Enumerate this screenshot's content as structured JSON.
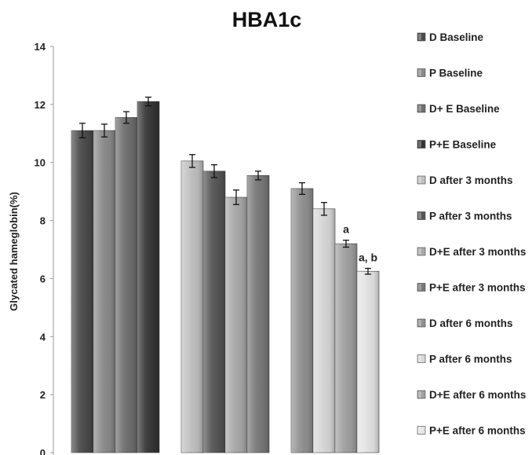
{
  "chart_data": {
    "type": "bar",
    "title": "HBA1c",
    "ylabel": "Glycated hameglobin(%)",
    "xlabel": "",
    "ylim": [
      0,
      14
    ],
    "yticks": [
      0,
      2,
      4,
      6,
      8,
      10,
      12,
      14
    ],
    "grid": false,
    "legend_position": "right",
    "groups": [
      {
        "bars": [
          {
            "series": "D Baseline",
            "value": 11.1,
            "error": 0.25,
            "color": "#4a4a4a"
          },
          {
            "series": "P Baseline",
            "value": 11.1,
            "error": 0.22,
            "color": "#8a8a8a"
          },
          {
            "series": "D+ E Baseline",
            "value": 11.55,
            "error": 0.2,
            "color": "#6e6e6e"
          },
          {
            "series": "P+E Baseline",
            "value": 12.1,
            "error": 0.15,
            "color": "#353535"
          }
        ]
      },
      {
        "bars": [
          {
            "series": "D after 3 months",
            "value": 10.05,
            "error": 0.22,
            "color": "#c0c0c0"
          },
          {
            "series": "P after 3 months",
            "value": 9.7,
            "error": 0.22,
            "color": "#555555"
          },
          {
            "series": "D+E after 3 months",
            "value": 8.8,
            "error": 0.25,
            "color": "#a8a8a8"
          },
          {
            "series": "P+E after 3 months",
            "value": 9.55,
            "error": 0.15,
            "color": "#787878"
          }
        ]
      },
      {
        "bars": [
          {
            "series": "D after 6 months",
            "value": 9.1,
            "error": 0.2,
            "color": "#909090"
          },
          {
            "series": "P after 6 months",
            "value": 8.4,
            "error": 0.22,
            "color": "#d8d8d8"
          },
          {
            "series": "D+E after 6 months",
            "value": 7.2,
            "error": 0.12,
            "color": "#a0a0a0",
            "annotation": "a"
          },
          {
            "series": "P+E after 6 months",
            "value": 6.25,
            "error": 0.1,
            "color": "#e4e4e4",
            "annotation": "a, b"
          }
        ]
      }
    ],
    "legend": [
      {
        "name": "D Baseline",
        "color": "#4a4a4a"
      },
      {
        "name": "P Baseline",
        "color": "#8a8a8a"
      },
      {
        "name": "D+ E Baseline",
        "color": "#6e6e6e"
      },
      {
        "name": "P+E Baseline",
        "color": "#353535"
      },
      {
        "name": "D after 3 months",
        "color": "#c0c0c0"
      },
      {
        "name": "P after 3 months",
        "color": "#555555"
      },
      {
        "name": "D+E after 3 months",
        "color": "#a8a8a8"
      },
      {
        "name": "P+E after 3 months",
        "color": "#787878"
      },
      {
        "name": "D after 6 months",
        "color": "#909090"
      },
      {
        "name": "P after 6 months",
        "color": "#d8d8d8"
      },
      {
        "name": "D+E after 6 months",
        "color": "#a0a0a0"
      },
      {
        "name": "P+E after 6 months",
        "color": "#e4e4e4"
      }
    ]
  }
}
